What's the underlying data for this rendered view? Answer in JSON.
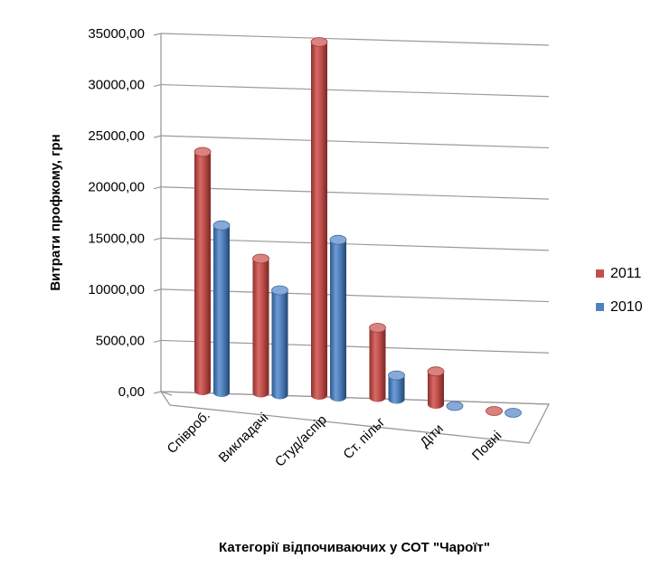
{
  "chart_data": {
    "type": "bar",
    "title": "",
    "xlabel": "Категорії відпочиваючих у СОТ  \"Чароїт\"",
    "ylabel": "Витрати профкому, грн",
    "categories": [
      "Співроб.",
      "Викладачі",
      "Студ/аспір",
      "Ст. пільг",
      "Діти",
      "Повні"
    ],
    "series": [
      {
        "name": "2011",
        "color": "#c0504d",
        "values": [
          24000,
          13500,
          35500,
          7000,
          3300,
          0
        ]
      },
      {
        "name": "2010",
        "color": "#4f81bd",
        "values": [
          16800,
          10500,
          15800,
          2400,
          0,
          0
        ]
      }
    ],
    "ylim": [
      0,
      35000
    ],
    "yticks": [
      "0,00",
      "5000,00",
      "10000,00",
      "15000,00",
      "20000,00",
      "25000,00",
      "30000,00",
      "35000,00"
    ],
    "grid": true,
    "legend_position": "right",
    "style": "3d-cylinder"
  }
}
